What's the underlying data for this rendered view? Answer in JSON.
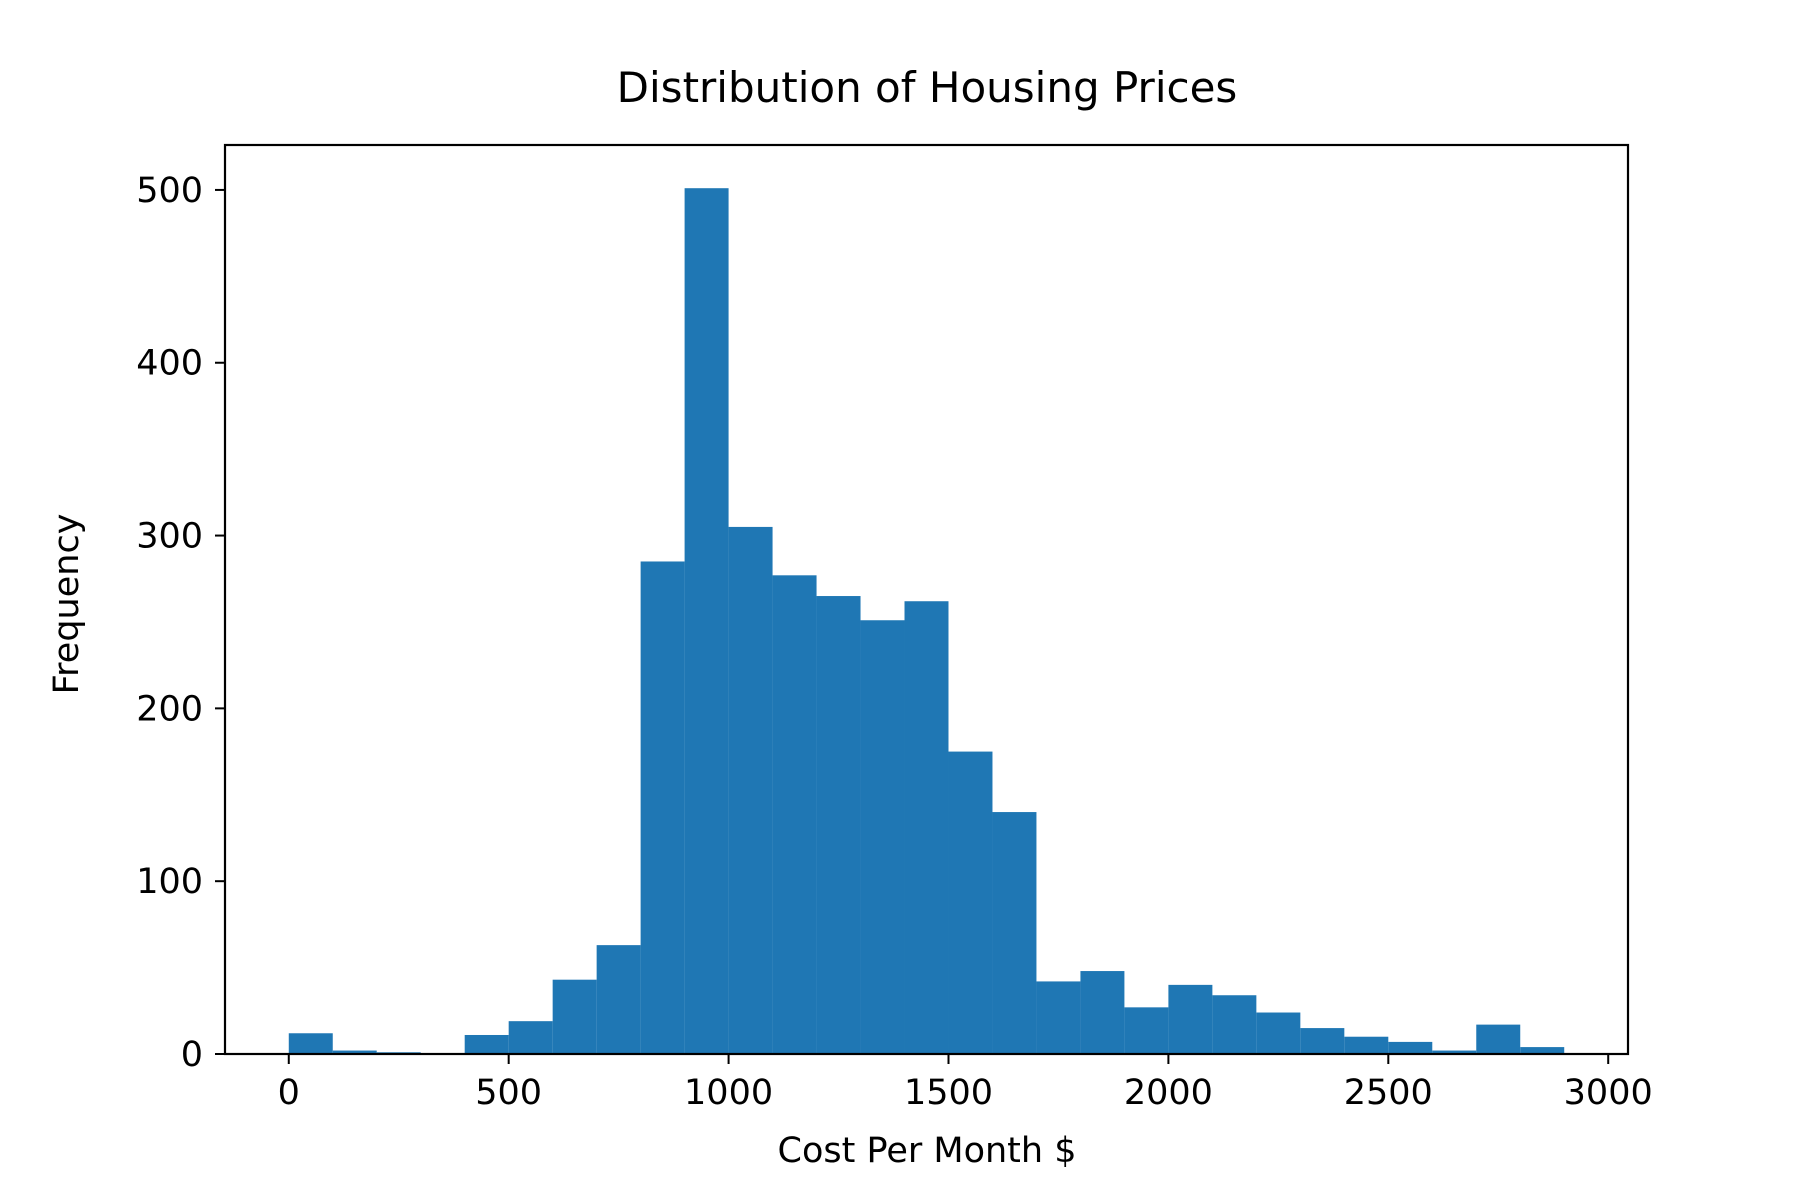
{
  "chart_data": {
    "type": "bar",
    "title": "Distribution of Housing Prices",
    "xlabel": "Cost Per Month $",
    "ylabel": "Frequency",
    "bin_width": 100,
    "bin_starts": [
      0,
      100,
      200,
      300,
      400,
      500,
      600,
      700,
      800,
      900,
      1000,
      1100,
      1200,
      1300,
      1400,
      1500,
      1600,
      1700,
      1800,
      1900,
      2000,
      2100,
      2200,
      2300,
      2400,
      2500,
      2600,
      2700,
      2800
    ],
    "values": [
      12,
      2,
      1,
      0,
      11,
      19,
      43,
      63,
      285,
      501,
      305,
      277,
      265,
      251,
      262,
      175,
      140,
      42,
      48,
      27,
      40,
      34,
      24,
      15,
      10,
      7,
      2,
      17,
      4
    ],
    "xlim": [
      -145,
      3045
    ],
    "ylim": [
      0,
      526
    ],
    "xticks": [
      0,
      500,
      1000,
      1500,
      2000,
      2500,
      3000
    ],
    "xtick_labels": [
      "0",
      "500",
      "1000",
      "1500",
      "2000",
      "2500",
      "3000"
    ],
    "yticks": [
      0,
      100,
      200,
      300,
      400,
      500
    ],
    "ytick_labels": [
      "0",
      "100",
      "200",
      "300",
      "400",
      "500"
    ],
    "grid": false,
    "bar_color": "#1f77b4"
  }
}
